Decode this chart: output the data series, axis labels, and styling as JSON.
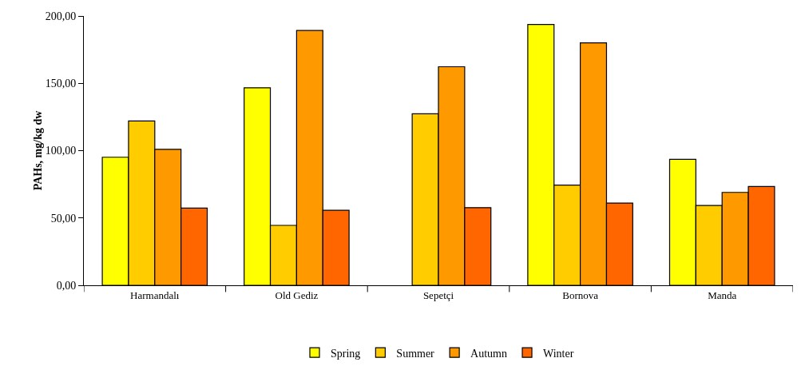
{
  "chart_data": {
    "type": "bar",
    "ylabel": "PAHs, mg/kg dw",
    "categories": [
      "Harmandalı",
      "Old Gediz",
      "Sepetçi",
      "Bornova",
      "Manda"
    ],
    "series": [
      {
        "name": "Spring",
        "color": "#ffff00",
        "values": [
          95.1,
          146.7,
          null,
          193.7,
          93.5
        ]
      },
      {
        "name": "Summer",
        "color": "#ffcc00",
        "values": [
          122.0,
          44.5,
          127.4,
          74.4,
          59.3
        ]
      },
      {
        "name": "Autumn",
        "color": "#ff9900",
        "values": [
          101.0,
          189.2,
          162.3,
          180.0,
          69.0
        ]
      },
      {
        "name": "Winter",
        "color": "#ff6600",
        "values": [
          57.3,
          55.7,
          57.7,
          61.1,
          73.4
        ]
      }
    ],
    "ylim": [
      0,
      200
    ],
    "yticks": [
      {
        "value": 0,
        "label": "0,00"
      },
      {
        "value": 50,
        "label": "50,00"
      },
      {
        "value": 100,
        "label": "100,00"
      },
      {
        "value": 150,
        "label": "150,00"
      },
      {
        "value": 200,
        "label": "200,00"
      }
    ],
    "grid": false,
    "legend": "bottom"
  }
}
